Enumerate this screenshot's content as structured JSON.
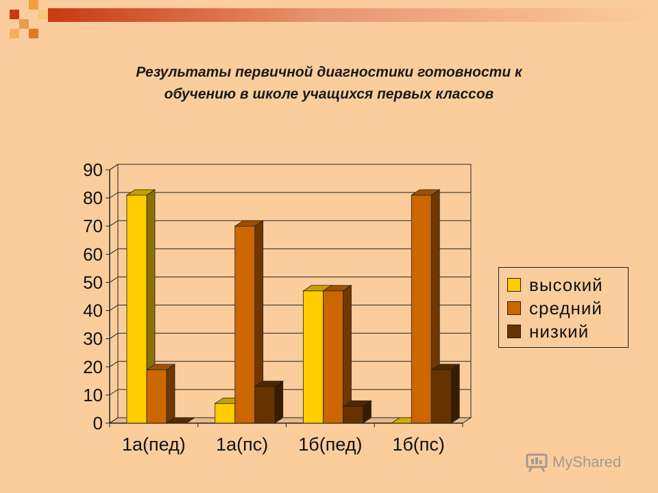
{
  "title_line1": "Результаты первичной диагностики готовности к",
  "title_line2": "обучению в школе учащихся первых классов",
  "watermark": "MyShared",
  "chart_data": {
    "type": "bar",
    "categories": [
      "1а(пед)",
      "1а(пс)",
      "1б(пед)",
      "1б(пс)"
    ],
    "series": [
      {
        "name": "высокий",
        "color": "#ffcc00",
        "values": [
          81,
          7,
          47,
          0
        ]
      },
      {
        "name": "средний",
        "color": "#cc6600",
        "values": [
          19,
          70,
          47,
          81
        ]
      },
      {
        "name": "низкий",
        "color": "#663300",
        "values": [
          0,
          13,
          6,
          19
        ]
      }
    ],
    "y_ticks": [
      "0",
      "10",
      "20",
      "30",
      "40",
      "50",
      "60",
      "70",
      "80",
      "90"
    ],
    "ylim": [
      0,
      90
    ],
    "grid": true,
    "legend_position": "right",
    "style": "3d-column"
  }
}
